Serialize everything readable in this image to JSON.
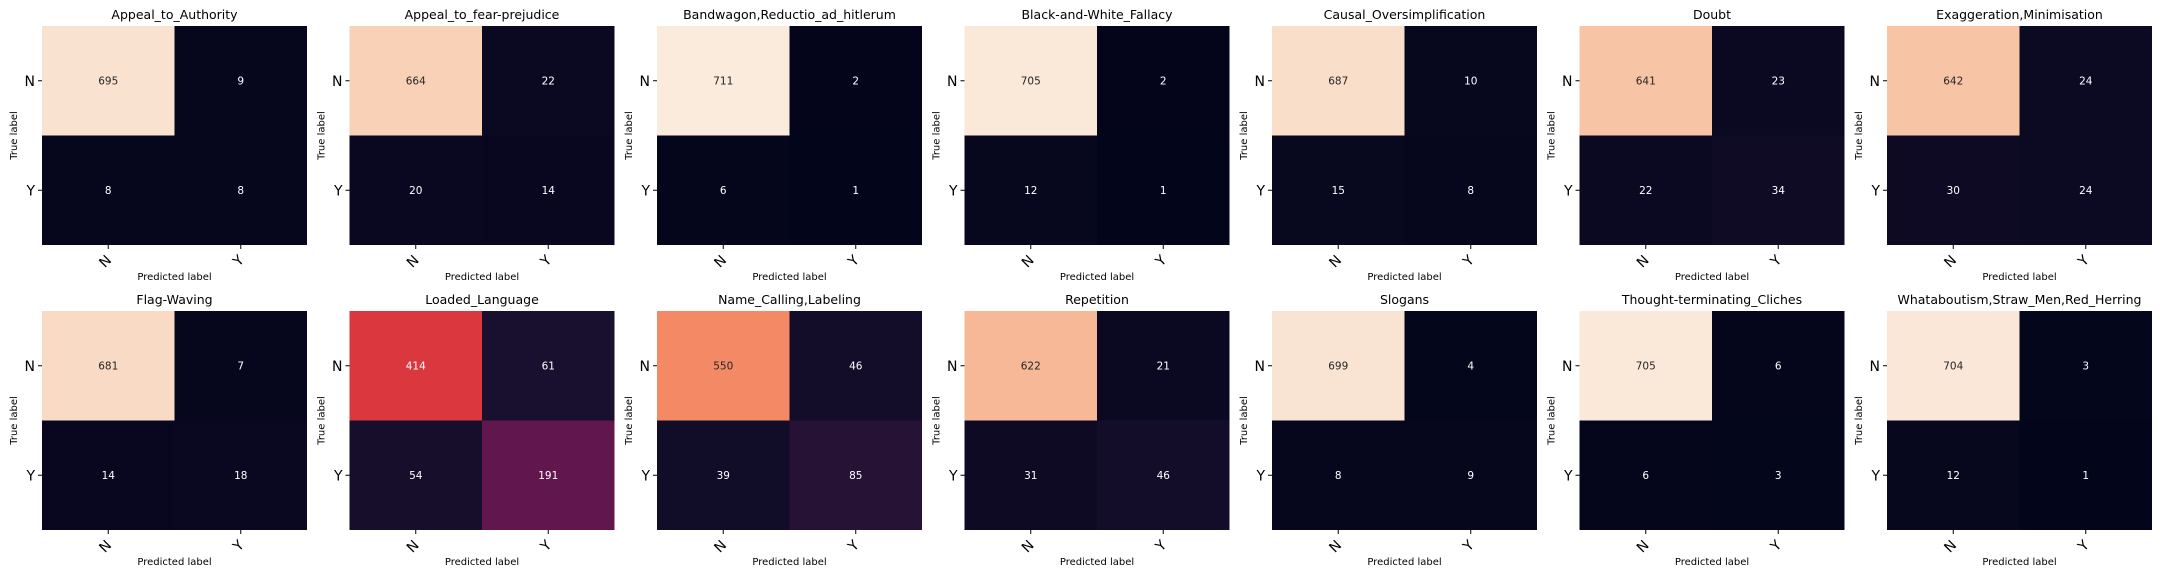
{
  "chart_data": [
    {
      "type": "heatmap",
      "title": "Appeal_to_Authority",
      "xlabel": "Predicted label",
      "ylabel": "True label",
      "x_categories": [
        "N",
        "Y"
      ],
      "y_categories": [
        "N",
        "Y"
      ],
      "values": [
        [
          695,
          9
        ],
        [
          8,
          8
        ]
      ]
    },
    {
      "type": "heatmap",
      "title": "Appeal_to_fear-prejudice",
      "xlabel": "Predicted label",
      "ylabel": "True label",
      "x_categories": [
        "N",
        "Y"
      ],
      "y_categories": [
        "N",
        "Y"
      ],
      "values": [
        [
          664,
          22
        ],
        [
          20,
          14
        ]
      ]
    },
    {
      "type": "heatmap",
      "title": "Bandwagon,Reductio_ad_hitlerum",
      "xlabel": "Predicted label",
      "ylabel": "True label",
      "x_categories": [
        "N",
        "Y"
      ],
      "y_categories": [
        "N",
        "Y"
      ],
      "values": [
        [
          711,
          2
        ],
        [
          6,
          1
        ]
      ]
    },
    {
      "type": "heatmap",
      "title": "Black-and-White_Fallacy",
      "xlabel": "Predicted label",
      "ylabel": "True label",
      "x_categories": [
        "N",
        "Y"
      ],
      "y_categories": [
        "N",
        "Y"
      ],
      "values": [
        [
          705,
          2
        ],
        [
          12,
          1
        ]
      ]
    },
    {
      "type": "heatmap",
      "title": "Causal_Oversimplification",
      "xlabel": "Predicted label",
      "ylabel": "True label",
      "x_categories": [
        "N",
        "Y"
      ],
      "y_categories": [
        "N",
        "Y"
      ],
      "values": [
        [
          687,
          10
        ],
        [
          15,
          8
        ]
      ]
    },
    {
      "type": "heatmap",
      "title": "Doubt",
      "xlabel": "Predicted label",
      "ylabel": "True label",
      "x_categories": [
        "N",
        "Y"
      ],
      "y_categories": [
        "N",
        "Y"
      ],
      "values": [
        [
          641,
          23
        ],
        [
          22,
          34
        ]
      ]
    },
    {
      "type": "heatmap",
      "title": "Exaggeration,Minimisation",
      "xlabel": "Predicted label",
      "ylabel": "True label",
      "x_categories": [
        "N",
        "Y"
      ],
      "y_categories": [
        "N",
        "Y"
      ],
      "values": [
        [
          642,
          24
        ],
        [
          30,
          24
        ]
      ]
    },
    {
      "type": "heatmap",
      "title": "Flag-Waving",
      "xlabel": "Predicted label",
      "ylabel": "True label",
      "x_categories": [
        "N",
        "Y"
      ],
      "y_categories": [
        "N",
        "Y"
      ],
      "values": [
        [
          681,
          7
        ],
        [
          14,
          18
        ]
      ]
    },
    {
      "type": "heatmap",
      "title": "Loaded_Language",
      "xlabel": "Predicted label",
      "ylabel": "True label",
      "x_categories": [
        "N",
        "Y"
      ],
      "y_categories": [
        "N",
        "Y"
      ],
      "values": [
        [
          414,
          61
        ],
        [
          54,
          191
        ]
      ]
    },
    {
      "type": "heatmap",
      "title": "Name_Calling,Labeling",
      "xlabel": "Predicted label",
      "ylabel": "True label",
      "x_categories": [
        "N",
        "Y"
      ],
      "y_categories": [
        "N",
        "Y"
      ],
      "values": [
        [
          550,
          46
        ],
        [
          39,
          85
        ]
      ]
    },
    {
      "type": "heatmap",
      "title": "Repetition",
      "xlabel": "Predicted label",
      "ylabel": "True label",
      "x_categories": [
        "N",
        "Y"
      ],
      "y_categories": [
        "N",
        "Y"
      ],
      "values": [
        [
          622,
          21
        ],
        [
          31,
          46
        ]
      ]
    },
    {
      "type": "heatmap",
      "title": "Slogans",
      "xlabel": "Predicted label",
      "ylabel": "True label",
      "x_categories": [
        "N",
        "Y"
      ],
      "y_categories": [
        "N",
        "Y"
      ],
      "values": [
        [
          699,
          4
        ],
        [
          8,
          9
        ]
      ]
    },
    {
      "type": "heatmap",
      "title": "Thought-terminating_Cliches",
      "xlabel": "Predicted label",
      "ylabel": "True label",
      "x_categories": [
        "N",
        "Y"
      ],
      "y_categories": [
        "N",
        "Y"
      ],
      "values": [
        [
          705,
          6
        ],
        [
          6,
          3
        ]
      ]
    },
    {
      "type": "heatmap",
      "title": "Whataboutism,Straw_Men,Red_Herring",
      "xlabel": "Predicted label",
      "ylabel": "True label",
      "x_categories": [
        "N",
        "Y"
      ],
      "y_categories": [
        "N",
        "Y"
      ],
      "values": [
        [
          704,
          3
        ],
        [
          12,
          1
        ]
      ]
    }
  ]
}
